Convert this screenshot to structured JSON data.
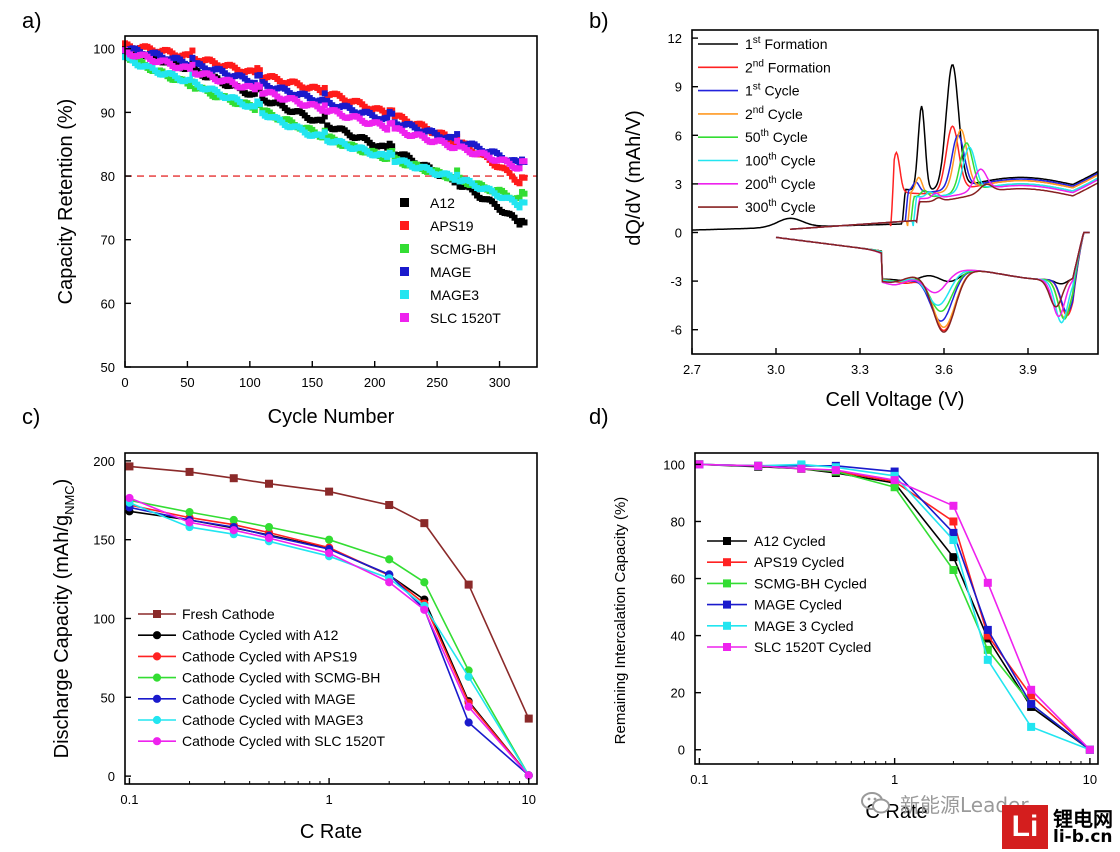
{
  "panels": [
    {
      "letter": "a)",
      "chart_data": {
        "type": "scatter",
        "xlabel": "Cycle Number",
        "ylabel": "Capacity Retention (%)",
        "xlim": [
          0,
          330
        ],
        "ylim": [
          50,
          102
        ],
        "xticks": [
          0,
          50,
          100,
          150,
          200,
          250,
          300
        ],
        "yticks": [
          50,
          60,
          70,
          80,
          90,
          100
        ],
        "reference_line": {
          "y": 80,
          "color": "#e53030",
          "style": "dashed"
        },
        "legend_position": "bottom-right",
        "series": [
          {
            "name": "A12",
            "color": "#000000",
            "x": [
              0,
              25,
              50,
              75,
              100,
              125,
              150,
              175,
              200,
              225,
              250,
              275,
              300,
              320
            ],
            "y": [
              100,
              98.5,
              97.0,
              95.0,
              93.0,
              91.0,
              89.0,
              87.0,
              85.0,
              83.0,
              80.5,
              78.0,
              75.0,
              72.0
            ]
          },
          {
            "name": "APS19",
            "color": "#ff1a1a",
            "x": [
              0,
              25,
              50,
              75,
              100,
              125,
              150,
              175,
              200,
              225,
              250,
              275,
              300,
              320
            ],
            "y": [
              100.5,
              99.8,
              98.8,
              97.6,
              96.3,
              95.0,
              93.8,
              92.2,
              90.5,
              88.8,
              86.8,
              84.5,
              81.5,
              78.5
            ]
          },
          {
            "name": "SCMG-BH",
            "color": "#33dd33",
            "x": [
              0,
              25,
              50,
              75,
              100,
              125,
              150,
              175,
              200,
              225,
              250,
              275,
              300,
              320
            ],
            "y": [
              99.0,
              96.5,
              94.5,
              92.5,
              91.0,
              89.0,
              87.0,
              85.0,
              83.5,
              82.0,
              80.5,
              79.0,
              77.5,
              76.0
            ]
          },
          {
            "name": "MAGE",
            "color": "#1a1acc",
            "x": [
              0,
              25,
              50,
              75,
              100,
              125,
              150,
              175,
              200,
              225,
              250,
              275,
              300,
              320
            ],
            "y": [
              100,
              99.0,
              97.8,
              96.5,
              95.0,
              93.6,
              92.2,
              90.8,
              89.4,
              88.0,
              86.5,
              85.0,
              83.2,
              81.5
            ]
          },
          {
            "name": "MAGE3",
            "color": "#22e5f0",
            "x": [
              0,
              25,
              50,
              75,
              100,
              125,
              150,
              175,
              200,
              225,
              250,
              275,
              300,
              320
            ],
            "y": [
              98.5,
              96.5,
              95.0,
              93.0,
              91.0,
              88.5,
              86.5,
              85.0,
              83.5,
              82.0,
              80.5,
              79.0,
              77.0,
              75.0
            ]
          },
          {
            "name": "SLC 1520T",
            "color": "#ee22ee",
            "x": [
              0,
              25,
              50,
              75,
              100,
              125,
              150,
              175,
              200,
              225,
              250,
              275,
              300,
              320
            ],
            "y": [
              99.5,
              98.2,
              96.8,
              95.2,
              93.8,
              92.4,
              91.0,
              89.6,
              88.2,
              86.8,
              85.4,
              84.0,
              82.5,
              81.0
            ]
          }
        ]
      }
    },
    {
      "letter": "b)",
      "chart_data": {
        "type": "line",
        "xlabel": "Cell Voltage (V)",
        "ylabel": "dQ/dV  (mAh/V)",
        "xlim": [
          2.7,
          4.15
        ],
        "ylim": [
          -7.5,
          12.5
        ],
        "xticks": [
          2.7,
          3.0,
          3.3,
          3.6,
          3.9
        ],
        "xtick_labels": [
          "2.7",
          "3.0",
          "3.3",
          "3.6",
          "3.9"
        ],
        "yticks": [
          -6,
          -3,
          0,
          3,
          6,
          9,
          12
        ],
        "legend_position": "top-left",
        "series": [
          {
            "name": "1st Formation",
            "base": "1",
            "sup": "st",
            "tail": " Formation",
            "color": "#000000",
            "kind": "formation1",
            "peaks": [
              {
                "v": 3.52,
                "h": 8.2
              },
              {
                "v": 3.63,
                "h": 10.6
              }
            ],
            "onset": 3.45,
            "plateau": 3.0,
            "disch": [
              {
                "v": 3.48,
                "d": -3.0
              },
              {
                "v": 3.62,
                "d": -3.2
              },
              {
                "v": 4.02,
                "d": -2.8
              }
            ]
          },
          {
            "name": "2nd Formation",
            "base": "2",
            "sup": "nd",
            "tail": " Formation",
            "color": "#ff2222",
            "kind": "charge",
            "peaks": [
              {
                "v": 3.43,
                "h": 5.2
              },
              {
                "v": 3.63,
                "h": 6.8
              }
            ],
            "onset": 3.41,
            "plateau": 2.8,
            "disch": [
              {
                "v": 3.47,
                "d": -3.2
              },
              {
                "v": 3.6,
                "d": -6.2
              },
              {
                "v": 4.04,
                "d": -4.8
              }
            ]
          },
          {
            "name": "1st Cycle",
            "base": "1",
            "sup": "st",
            "tail": " Cycle",
            "color": "#2222dd",
            "kind": "charge",
            "peaks": [
              {
                "v": 3.5,
                "h": 3.5
              },
              {
                "v": 3.65,
                "h": 6.2
              }
            ],
            "onset": 3.46,
            "plateau": 2.9,
            "disch": [
              {
                "v": 3.46,
                "d": -3.0
              },
              {
                "v": 3.59,
                "d": -5.6
              },
              {
                "v": 4.04,
                "d": -4.6
              }
            ]
          },
          {
            "name": "2nd Cycle",
            "base": "2",
            "sup": "nd",
            "tail": " Cycle",
            "color": "#ff9922",
            "kind": "charge",
            "peaks": [
              {
                "v": 3.51,
                "h": 3.8
              },
              {
                "v": 3.66,
                "h": 6.5
              }
            ],
            "onset": 3.47,
            "plateau": 2.8,
            "disch": [
              {
                "v": 3.46,
                "d": -3.0
              },
              {
                "v": 3.6,
                "d": -6.0
              },
              {
                "v": 4.03,
                "d": -4.9
              }
            ]
          },
          {
            "name": "50th Cycle",
            "base": "50",
            "sup": "th",
            "tail": " Cycle",
            "color": "#33dd33",
            "kind": "charge",
            "peaks": [
              {
                "v": 3.53,
                "h": 3.0
              },
              {
                "v": 3.68,
                "h": 5.6
              }
            ],
            "onset": 3.48,
            "plateau": 2.6,
            "disch": [
              {
                "v": 3.45,
                "d": -2.9
              },
              {
                "v": 3.59,
                "d": -5.0
              },
              {
                "v": 4.03,
                "d": -5.0
              }
            ]
          },
          {
            "name": "100th Cycle",
            "base": "100",
            "sup": "th",
            "tail": " Cycle",
            "color": "#22e5f0",
            "kind": "charge",
            "peaks": [
              {
                "v": 3.55,
                "h": 2.9
              },
              {
                "v": 3.69,
                "h": 5.3
              }
            ],
            "onset": 3.49,
            "plateau": 2.6,
            "disch": [
              {
                "v": 3.44,
                "d": -2.9
              },
              {
                "v": 3.58,
                "d": -4.6
              },
              {
                "v": 4.02,
                "d": -5.2
              }
            ]
          },
          {
            "name": "200th Cycle",
            "base": "200",
            "sup": "th",
            "tail": " Cycle",
            "color": "#ee22ee",
            "kind": "charge",
            "peaks": [
              {
                "v": 3.57,
                "h": 2.8
              },
              {
                "v": 3.73,
                "h": 3.8
              }
            ],
            "onset": 3.5,
            "plateau": 2.5,
            "disch": [
              {
                "v": 3.43,
                "d": -3.2
              },
              {
                "v": 3.57,
                "d": -3.8
              },
              {
                "v": 4.01,
                "d": -4.8
              }
            ]
          },
          {
            "name": "300th Cycle",
            "base": "300",
            "sup": "th",
            "tail": " Cycle",
            "color": "#882222",
            "kind": "charge",
            "peaks": [
              {
                "v": 3.58,
                "h": 2.5
              },
              {
                "v": 3.75,
                "h": 2.8
              }
            ],
            "onset": 3.5,
            "plateau": 2.3,
            "disch": [
              {
                "v": 3.42,
                "d": -2.9
              },
              {
                "v": 3.6,
                "d": -6.3
              },
              {
                "v": 4.0,
                "d": -4.2
              }
            ]
          }
        ]
      }
    },
    {
      "letter": "c)",
      "chart_data": {
        "type": "line",
        "xscale": "log",
        "xlabel": "C Rate",
        "ylabel_base": "Discharge Capacity (mAh/g",
        "ylabel_sub": "NMC",
        "ylabel_tail": ")",
        "xlim": [
          0.095,
          11
        ],
        "ylim": [
          -5,
          205
        ],
        "xticks": [
          0.1,
          1,
          10
        ],
        "xtick_labels": [
          "0.1",
          "1",
          "10"
        ],
        "yticks": [
          0,
          50,
          100,
          150,
          200
        ],
        "legend_position": "bottom-left",
        "x": [
          0.1,
          0.2,
          0.333,
          0.5,
          1,
          2,
          3,
          5,
          10
        ],
        "series": [
          {
            "name": "Fresh Cathode",
            "color": "#8b2a2a",
            "marker": "square",
            "values": [
              196.5,
              193,
              189,
              185.5,
              180.5,
              172,
              160.5,
              121.5,
              36.5
            ]
          },
          {
            "name": "Cathode Cycled with A12",
            "color": "#000000",
            "marker": "circle",
            "values": [
              168,
              162.5,
              157.5,
              153,
              144.5,
              127.5,
              112,
              47.5,
              0.5
            ]
          },
          {
            "name": "Cathode Cycled with APS19",
            "color": "#ff2222",
            "marker": "circle",
            "values": [
              172,
              164,
              159.5,
              154.5,
              145,
              127.5,
              109.5,
              46.5,
              0.5
            ]
          },
          {
            "name": "Cathode Cycled with SCMG-BH",
            "color": "#33dd33",
            "marker": "circle",
            "values": [
              175,
              167.5,
              162.5,
              158,
              150,
              137.5,
              123,
              67,
              0.5
            ]
          },
          {
            "name": "Cathode Cycled with MAGE",
            "color": "#1a1acc",
            "marker": "circle",
            "values": [
              170.5,
              162.5,
              158,
              152.5,
              144,
              128,
              106,
              34,
              0.5
            ]
          },
          {
            "name": "Cathode Cycled with MAGE3",
            "color": "#22e5f0",
            "marker": "circle",
            "values": [
              173.5,
              158,
              153.5,
              149,
              139.5,
              125.5,
              108,
              63,
              0.5
            ]
          },
          {
            "name": "Cathode Cycled with SLC 1520T",
            "color": "#ee22ee",
            "marker": "circle",
            "values": [
              176.5,
              161,
              156,
              151,
              141.5,
              123,
              105.5,
              44,
              0.5
            ]
          }
        ]
      }
    },
    {
      "letter": "d)",
      "chart_data": {
        "type": "line",
        "xscale": "log",
        "xlabel": "C Rate",
        "ylabel": "Remaining Intercalation Capacity (%)",
        "xlim": [
          0.095,
          11
        ],
        "ylim": [
          -5,
          104
        ],
        "xticks": [
          0.1,
          1,
          10
        ],
        "xtick_labels": [
          "0.1",
          "1",
          "10"
        ],
        "yticks": [
          0,
          20,
          40,
          60,
          80,
          100
        ],
        "legend_position": "left-middle",
        "x": [
          0.1,
          0.2,
          0.333,
          0.5,
          1,
          2,
          3,
          5,
          10
        ],
        "series": [
          {
            "name": "A12 Cycled",
            "color": "#000000",
            "values": [
              100,
              99.2,
              98.5,
              97,
              93.5,
              67.5,
              39,
              15,
              0
            ]
          },
          {
            "name": "APS19 Cycled",
            "color": "#ff2222",
            "values": [
              100,
              99.5,
              98.5,
              97.5,
              94,
              80,
              40,
              19,
              0
            ]
          },
          {
            "name": "SCMG-BH Cycled",
            "color": "#33dd33",
            "values": [
              100,
              99.5,
              98.5,
              97.5,
              92,
              63,
              35,
              16,
              0
            ]
          },
          {
            "name": "MAGE Cycled",
            "color": "#1a1acc",
            "values": [
              100,
              99.5,
              99.5,
              99.5,
              97.5,
              76,
              42,
              16,
              0
            ]
          },
          {
            "name": "MAGE 3 Cycled",
            "color": "#22e5f0",
            "values": [
              100,
              99.5,
              100,
              99,
              96,
              73.5,
              31.5,
              8,
              0
            ]
          },
          {
            "name": "SLC 1520T Cycled",
            "color": "#ee22ee",
            "values": [
              100,
              99.5,
              98.5,
              98,
              94.5,
              85.5,
              58.5,
              21,
              0
            ]
          }
        ]
      }
    }
  ],
  "watermark": {
    "handle": "新能源Leader",
    "site_cn": "锂电网",
    "site_url": "li-b.cn",
    "logo_text": "Li",
    "icon": "wechat-icon"
  }
}
